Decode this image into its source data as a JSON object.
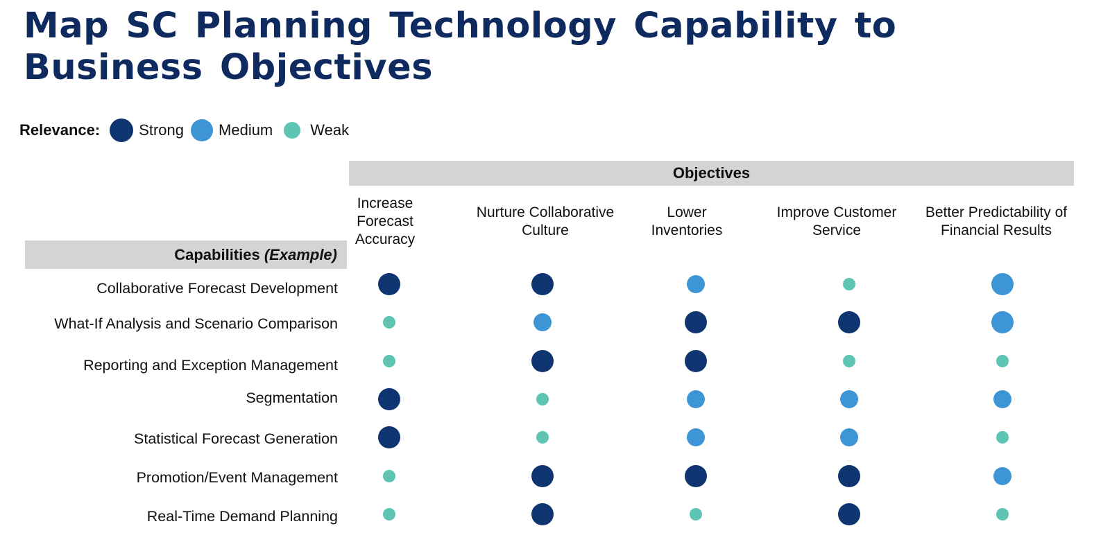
{
  "title": "Map SC Planning Technology Capability to Business Objectives",
  "legend": {
    "label": "Relevance:",
    "items": [
      {
        "key": "strong",
        "label": "Strong",
        "color": "#0f3570"
      },
      {
        "key": "medium",
        "label": "Medium",
        "color": "#3d95d6"
      },
      {
        "key": "weak",
        "label": "Weak",
        "color": "#5ec4b4"
      }
    ]
  },
  "objectives_title": "Objectives",
  "capabilities_title": "Capabilities",
  "capabilities_title_suffix": "(Example)",
  "objectives": [
    "Increase Forecast Accuracy",
    "Nurture Collaborative Culture",
    "Lower Inventories",
    "Improve Customer Service",
    "Better Predictability of Financial Results"
  ],
  "capabilities": [
    "Collaborative Forecast Development",
    "What-If Analysis and Scenario Comparison",
    "Reporting and Exception Management",
    "Segmentation",
    "Statistical Forecast Generation",
    "Promotion/Event Management",
    "Real-Time Demand Planning"
  ],
  "matrix": [
    [
      "strong",
      "strong",
      "medium",
      "weak",
      "medium"
    ],
    [
      "weak",
      "medium",
      "strong",
      "strong",
      "medium"
    ],
    [
      "weak",
      "strong",
      "strong",
      "weak",
      "weak"
    ],
    [
      "strong",
      "weak",
      "medium",
      "medium",
      "medium"
    ],
    [
      "strong",
      "weak",
      "medium",
      "medium",
      "weak"
    ],
    [
      "weak",
      "strong",
      "strong",
      "strong",
      "medium"
    ],
    [
      "weak",
      "strong",
      "weak",
      "strong",
      "weak"
    ]
  ]
}
